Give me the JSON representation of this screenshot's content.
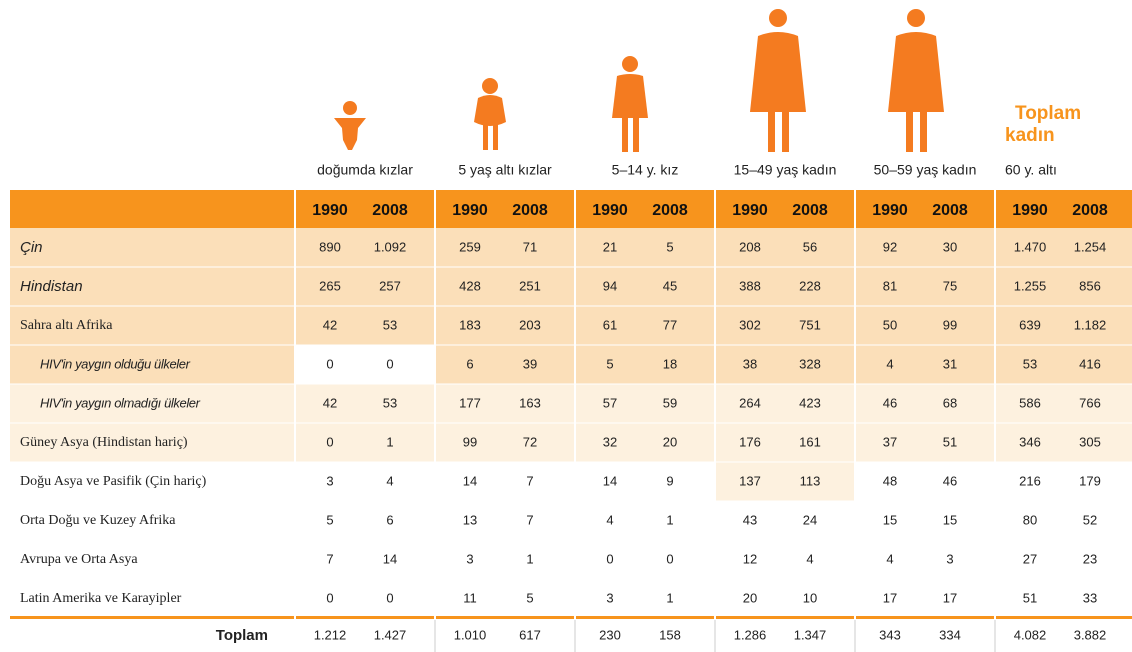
{
  "table": {
    "groups": [
      {
        "label": "doğumda kızlar",
        "years": [
          "1990",
          "2008"
        ]
      },
      {
        "label": "5 yaş altı kızlar",
        "years": [
          "1990",
          "2008"
        ]
      },
      {
        "label": "5–14 y. kız",
        "years": [
          "1990",
          "2008"
        ]
      },
      {
        "label": "15–49 yaş kadın",
        "years": [
          "1990",
          "2008"
        ]
      },
      {
        "label": "50–59 yaş kadın",
        "years": [
          "1990",
          "2008"
        ]
      },
      {
        "title": "Toplam kadın",
        "label": "60 y. altı",
        "years": [
          "1990",
          "2008"
        ]
      }
    ],
    "rows": [
      {
        "label": "Çin",
        "values": [
          "890",
          "1.092",
          "259",
          "71",
          "21",
          "5",
          "208",
          "56",
          "92",
          "30",
          "1.470",
          "1.254"
        ]
      },
      {
        "label": "Hindistan",
        "values": [
          "265",
          "257",
          "428",
          "251",
          "94",
          "45",
          "388",
          "228",
          "81",
          "75",
          "1.255",
          "856"
        ]
      },
      {
        "label": "Sahra altı Afrika",
        "values": [
          "42",
          "53",
          "183",
          "203",
          "61",
          "77",
          "302",
          "751",
          "50",
          "99",
          "639",
          "1.182"
        ]
      },
      {
        "label": "HIV'in yaygın olduğu ülkeler",
        "values": [
          "0",
          "0",
          "6",
          "39",
          "5",
          "18",
          "38",
          "328",
          "4",
          "31",
          "53",
          "416"
        ]
      },
      {
        "label": "HIV'in yaygın olmadığı ülkeler",
        "values": [
          "42",
          "53",
          "177",
          "163",
          "57",
          "59",
          "264",
          "423",
          "46",
          "68",
          "586",
          "766"
        ]
      },
      {
        "label": "Güney Asya (Hindistan hariç)",
        "values": [
          "0",
          "1",
          "99",
          "72",
          "32",
          "20",
          "176",
          "161",
          "37",
          "51",
          "346",
          "305"
        ]
      },
      {
        "label": "Doğu Asya ve Pasifik (Çin hariç)",
        "values": [
          "3",
          "4",
          "14",
          "7",
          "14",
          "9",
          "137",
          "113",
          "48",
          "46",
          "216",
          "179"
        ]
      },
      {
        "label": "Orta Doğu ve Kuzey Afrika",
        "values": [
          "5",
          "6",
          "13",
          "7",
          "4",
          "1",
          "43",
          "24",
          "15",
          "15",
          "80",
          "52"
        ]
      },
      {
        "label": "Avrupa ve Orta Asya",
        "values": [
          "7",
          "14",
          "3",
          "1",
          "0",
          "0",
          "12",
          "4",
          "4",
          "3",
          "27",
          "23"
        ]
      },
      {
        "label": "Latin Amerika ve Karayipler",
        "values": [
          "0",
          "0",
          "11",
          "5",
          "3",
          "1",
          "20",
          "10",
          "17",
          "17",
          "51",
          "33"
        ]
      }
    ],
    "total": {
      "label": "Toplam",
      "values": [
        "1.212",
        "1.427",
        "1.010",
        "617",
        "230",
        "158",
        "1.286",
        "1.347",
        "343",
        "334",
        "4.082",
        "3.882"
      ]
    }
  }
}
